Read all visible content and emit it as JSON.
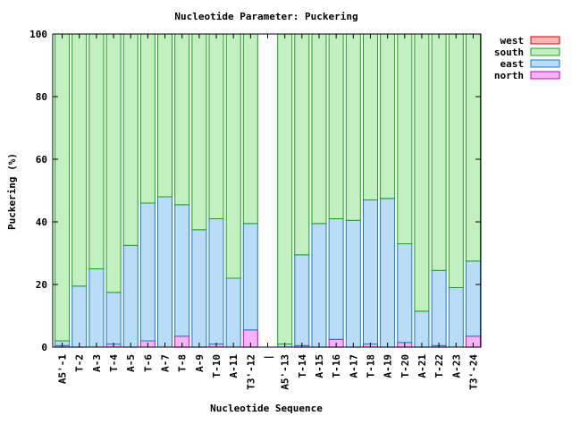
{
  "chart_data": {
    "type": "bar",
    "stacked": true,
    "title": "Nucleotide Parameter: Puckering",
    "xlabel": "Nucleotide Sequence",
    "ylabel": "Puckering (%)",
    "ylim": [
      0,
      100
    ],
    "yticks": [
      0,
      20,
      40,
      60,
      80,
      100
    ],
    "grid": false,
    "legend_position": "top-right outside",
    "categories": [
      "A5'-1",
      "T-2",
      "A-3",
      "T-4",
      "A-5",
      "T-6",
      "A-7",
      "T-8",
      "A-9",
      "T-10",
      "A-11",
      "T3'-12",
      "|",
      "A5'-13",
      "T-14",
      "A-15",
      "T-16",
      "A-17",
      "T-18",
      "A-19",
      "T-20",
      "A-21",
      "T-22",
      "A-23",
      "T3'-24"
    ],
    "series": [
      {
        "name": "north",
        "color": "#f5b4f5",
        "stroke": "#cc00cc",
        "values": [
          0.5,
          0,
          0,
          1,
          0,
          2,
          0,
          3.5,
          0,
          1,
          0,
          5.5,
          0,
          0,
          0.5,
          0,
          2.5,
          0,
          1,
          0,
          1.5,
          0,
          0.5,
          0,
          3.5
        ]
      },
      {
        "name": "east",
        "color": "#b9dcf7",
        "stroke": "#1a78c8",
        "values": [
          1.5,
          19.5,
          25,
          16.5,
          32.5,
          44,
          48,
          42,
          37.5,
          40,
          22,
          34,
          0,
          1,
          29,
          39.5,
          38.5,
          40.5,
          46,
          47.5,
          31.5,
          11.5,
          24,
          19,
          24
        ]
      },
      {
        "name": "south",
        "color": "#c3f0c0",
        "stroke": "#1aa21a",
        "values": [
          98,
          80.5,
          75,
          82.5,
          67.5,
          54,
          52,
          54.5,
          62.5,
          59,
          78,
          60.5,
          0,
          99,
          70.5,
          60.5,
          59,
          59.5,
          53,
          52.5,
          67,
          88.5,
          75.5,
          81,
          72.5
        ]
      },
      {
        "name": "west",
        "color": "#f7b7b7",
        "stroke": "#cc0000",
        "values": [
          0,
          0,
          0,
          0,
          0,
          0,
          0,
          0,
          0,
          0,
          0,
          0,
          0,
          0,
          0,
          0,
          0,
          0,
          0,
          0,
          0,
          0,
          0,
          0,
          0
        ]
      }
    ]
  }
}
